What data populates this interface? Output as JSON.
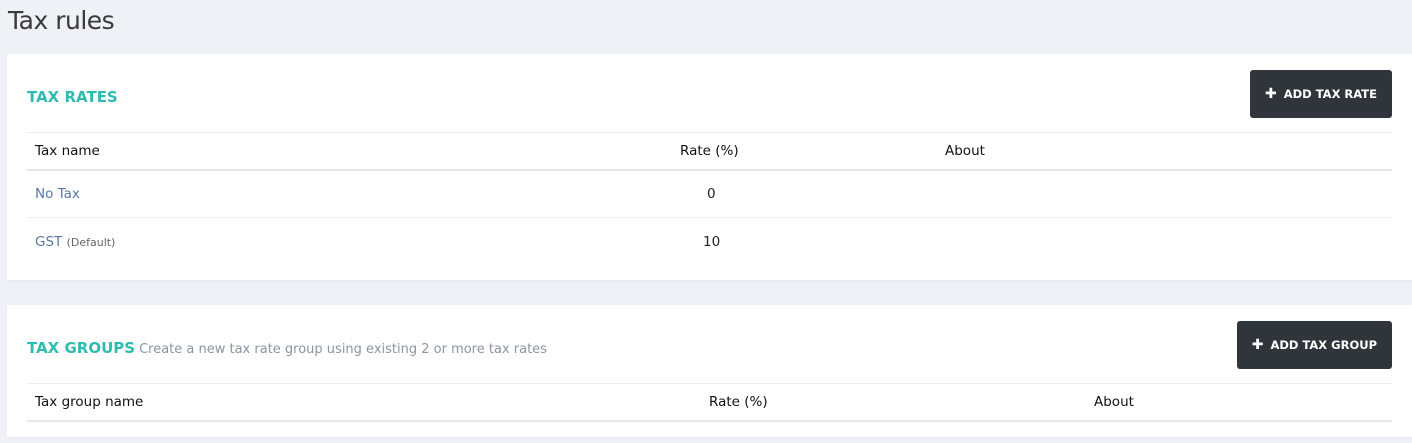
{
  "page_title": "Tax rules",
  "tax_rates": {
    "title": "TAX RATES",
    "add_button": "ADD TAX RATE",
    "columns": [
      "Tax name",
      "Rate (%)",
      "About"
    ],
    "rows": [
      {
        "name": "No Tax",
        "badge": "",
        "rate": "0",
        "about": ""
      },
      {
        "name": "GST",
        "badge": "(Default)",
        "rate": "10",
        "about": ""
      }
    ]
  },
  "tax_groups": {
    "title": "TAX GROUPS",
    "subtitle": "Create a new tax rate group using existing 2 or more tax rates",
    "add_button": "ADD TAX GROUP",
    "columns": [
      "Tax group name",
      "Rate (%)",
      "About"
    ]
  },
  "colors": {
    "accent": "#2fbcb0",
    "button": "#30343b",
    "link": "#5a76a8"
  }
}
